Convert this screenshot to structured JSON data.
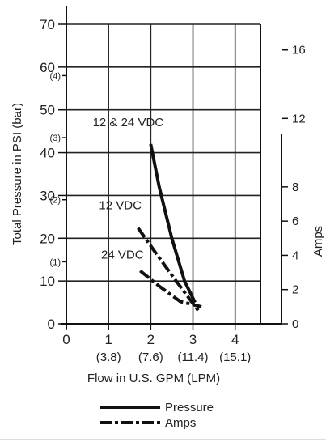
{
  "chart_data": {
    "type": "line",
    "title": "",
    "xlabel": "Flow in U.S. GPM (LPM)",
    "ylabel": "Total Pressure in PSI (bar)",
    "y2label": "Amps",
    "xlim": [
      0,
      4.6
    ],
    "ylim": [
      0,
      70
    ],
    "y2lim": [
      0,
      17.5
    ],
    "x_ticks": [
      {
        "value": 0,
        "label": "0",
        "sub": ""
      },
      {
        "value": 1,
        "label": "1",
        "sub": "(3.8)"
      },
      {
        "value": 2,
        "label": "2",
        "sub": "(7.6)"
      },
      {
        "value": 3,
        "label": "3",
        "sub": "(11.4)"
      },
      {
        "value": 4,
        "label": "4",
        "sub": "(15.1)"
      }
    ],
    "y_ticks": [
      {
        "value": 0,
        "label": "0"
      },
      {
        "value": 10,
        "label": "10"
      },
      {
        "value": 20,
        "label": "20"
      },
      {
        "value": 30,
        "label": "30"
      },
      {
        "value": 40,
        "label": "40"
      },
      {
        "value": 50,
        "label": "50"
      },
      {
        "value": 60,
        "label": "60"
      },
      {
        "value": 70,
        "label": "70"
      }
    ],
    "y_bar_ticks": [
      {
        "value": 14.5,
        "label": "(1)"
      },
      {
        "value": 29,
        "label": "(2)"
      },
      {
        "value": 43.5,
        "label": "(3)"
      },
      {
        "value": 58,
        "label": "(4)"
      }
    ],
    "y2_ticks": [
      {
        "value": 0,
        "label": "0"
      },
      {
        "value": 2,
        "label": "2"
      },
      {
        "value": 4,
        "label": "4"
      },
      {
        "value": 6,
        "label": "6"
      },
      {
        "value": 8,
        "label": "8"
      },
      {
        "value": 12,
        "label": "12"
      },
      {
        "value": 16,
        "label": "16"
      }
    ],
    "grid": true,
    "series": [
      {
        "name": "12 & 24 VDC",
        "kind": "Pressure",
        "axis": "left",
        "style": "solid",
        "x": [
          2.0,
          2.2,
          2.5,
          2.8,
          3.05
        ],
        "y": [
          42,
          32,
          20,
          10,
          5
        ]
      },
      {
        "name": "12 VDC",
        "kind": "Amps",
        "axis": "right",
        "style": "dashdot",
        "x": [
          1.7,
          2.1,
          2.6,
          3.15
        ],
        "y": [
          5.6,
          4.2,
          2.5,
          0.7
        ]
      },
      {
        "name": "24 VDC",
        "kind": "Amps",
        "axis": "right",
        "style": "dashdot",
        "x": [
          1.75,
          2.2,
          2.7,
          3.2
        ],
        "y": [
          3.1,
          2.2,
          1.3,
          1.0
        ]
      }
    ],
    "annotations": [
      {
        "text": "12 & 24 VDC",
        "series": 0
      },
      {
        "text": "12 VDC",
        "series": 1
      },
      {
        "text": "24 VDC",
        "series": 2
      }
    ],
    "legend": {
      "position": "bottom",
      "items": [
        {
          "label": "Pressure",
          "style": "solid"
        },
        {
          "label": "Amps",
          "style": "dashdot"
        }
      ]
    }
  }
}
